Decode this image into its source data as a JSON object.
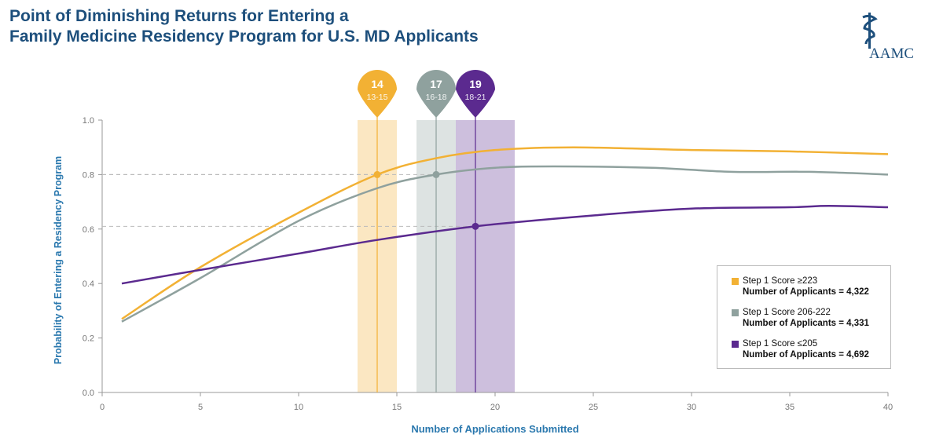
{
  "title_line1": "Point of Diminishing Returns for Entering a",
  "title_line2": "Family Medicine Residency Program for U.S. MD Applicants",
  "logo": "AAMC",
  "chart_data": {
    "type": "line",
    "xlabel": "Number of Applications Submitted",
    "ylabel": "Probability of Entering a Residency Program",
    "xlim": [
      0,
      40
    ],
    "ylim": [
      0,
      1.0
    ],
    "xticks": [
      0,
      5,
      10,
      15,
      20,
      25,
      30,
      35,
      40
    ],
    "yticks": [
      "0.0",
      "0.2",
      "0.4",
      "0.6",
      "0.8",
      "1.0"
    ],
    "grid": false,
    "legend_placement": "bottom-right",
    "series": [
      {
        "name": "Step 1 Score ≥223",
        "applicants": "Number of Applicants = 4,322",
        "color": "#f2b134",
        "x": [
          1,
          5,
          10,
          14,
          17,
          20,
          24,
          30,
          35,
          40
        ],
        "y": [
          0.27,
          0.46,
          0.66,
          0.8,
          0.86,
          0.89,
          0.9,
          0.89,
          0.885,
          0.875
        ],
        "marker": {
          "x": 14,
          "y": 0.8
        },
        "band": [
          13,
          15
        ],
        "pin_value": "14",
        "pin_range": "13-15"
      },
      {
        "name": "Step 1 Score 206-222",
        "applicants": "Number of Applicants = 4,331",
        "color": "#8fa19e",
        "x": [
          1,
          5,
          10,
          14,
          17,
          20,
          23,
          28,
          32,
          36,
          40
        ],
        "y": [
          0.26,
          0.42,
          0.63,
          0.75,
          0.8,
          0.825,
          0.83,
          0.825,
          0.81,
          0.81,
          0.8
        ],
        "marker": {
          "x": 17,
          "y": 0.8
        },
        "band": [
          16,
          18
        ],
        "pin_value": "17",
        "pin_range": "16-18"
      },
      {
        "name": "Step 1 Score ≤205",
        "applicants": "Number of Applicants = 4,692",
        "color": "#5b2a8f",
        "x": [
          1,
          5,
          10,
          14,
          19,
          25,
          30,
          35,
          37,
          40
        ],
        "y": [
          0.4,
          0.45,
          0.51,
          0.56,
          0.61,
          0.65,
          0.675,
          0.68,
          0.685,
          0.68
        ],
        "marker": {
          "x": 19,
          "y": 0.61
        },
        "band": [
          18,
          21
        ],
        "pin_value": "19",
        "pin_range": "18-21"
      }
    ]
  }
}
